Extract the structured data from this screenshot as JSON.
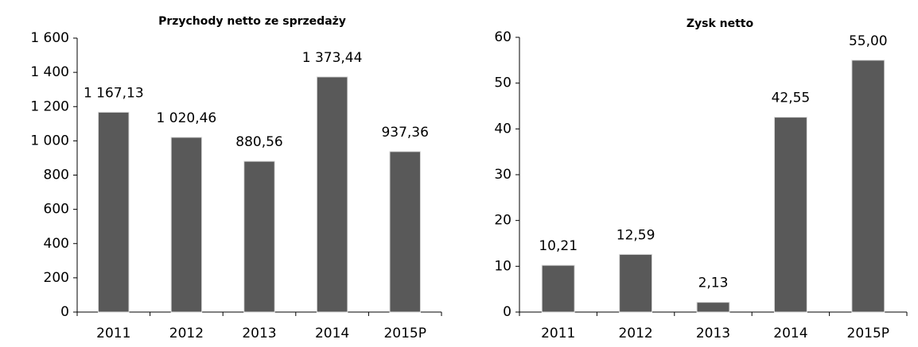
{
  "chart_data": [
    {
      "type": "bar",
      "title": "Przychody netto ze sprzedaży",
      "categories": [
        "2011",
        "2012",
        "2013",
        "2014",
        "2015P"
      ],
      "values": [
        1167.13,
        1020.46,
        880.56,
        1373.44,
        937.36
      ],
      "value_labels": [
        "1 167,13",
        "1 020,46",
        "880,56",
        "1 373,44",
        "937,36"
      ],
      "color": "#595959",
      "ylim": [
        0,
        1600
      ],
      "yticks": [
        0,
        200,
        400,
        600,
        800,
        {
          "value": 1000,
          "label": "1 000"
        },
        {
          "value": 1200,
          "label": "1 200"
        },
        {
          "value": 1400,
          "label": "1 400"
        },
        {
          "value": 1600,
          "label": "1 600"
        }
      ],
      "grid": false
    },
    {
      "type": "bar",
      "title": "Zysk netto",
      "categories": [
        "2011",
        "2012",
        "2013",
        "2014",
        "2015P"
      ],
      "values": [
        10.21,
        12.59,
        2.13,
        42.55,
        55.0
      ],
      "value_labels": [
        "10,21",
        "12,59",
        "2,13",
        "42,55",
        "55,00"
      ],
      "color": "#595959",
      "ylim": [
        0,
        60
      ],
      "yticks": [
        0,
        10,
        20,
        30,
        40,
        50,
        60
      ],
      "grid": false
    }
  ]
}
